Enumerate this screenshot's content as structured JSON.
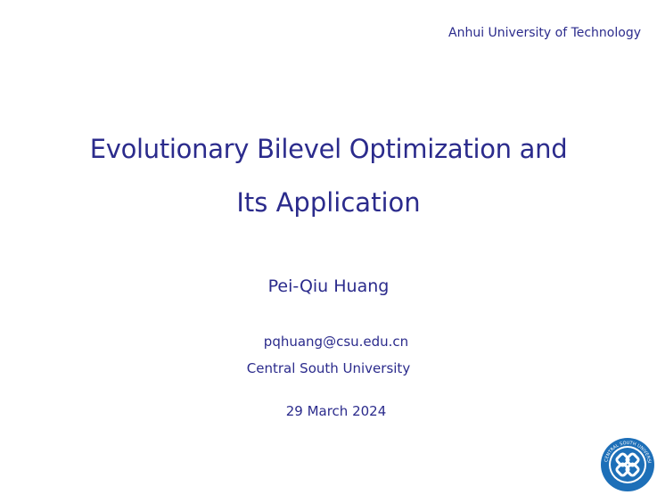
{
  "header": {
    "institution": "Anhui University of Technology"
  },
  "title": {
    "line1": "Evolutionary Bilevel Optimization and",
    "line2": "Its Application"
  },
  "author": {
    "name": "Pei-Qiu Huang",
    "email": "pqhuang@csu.edu.cn",
    "affiliation": "Central South University"
  },
  "date": "29 March 2024",
  "logo": {
    "text": "CENTRAL SOUTH UNIVERSITY"
  },
  "colors": {
    "text": "#2b2b8c",
    "logo": "#1d6fb8"
  }
}
